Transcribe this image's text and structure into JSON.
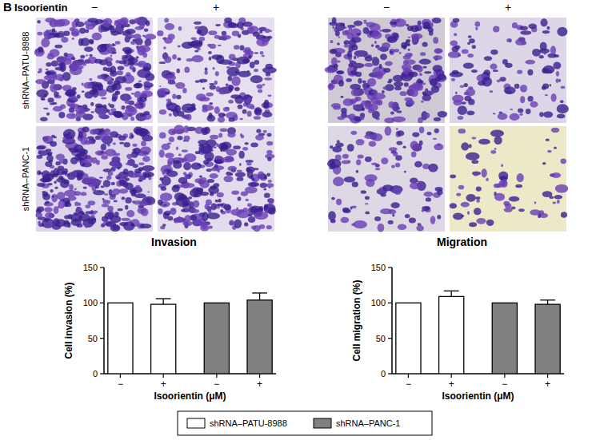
{
  "panel": {
    "label": "B",
    "treatment": "Isoorientin",
    "columns": [
      "−",
      "+",
      "−",
      "+"
    ],
    "rows": [
      "shRNA–PATU-8988",
      "shRNA–PANC-1"
    ]
  },
  "chart_data": [
    {
      "type": "bar",
      "title": "Invasion",
      "x_label": "Isoorientin (μM)",
      "y_label": "Cell invasion (%)",
      "categories": [
        "−",
        "+",
        "−",
        "+"
      ],
      "series": [
        {
          "name": "shRNA–PATU-8988",
          "color": "#ffffff",
          "values": [
            100,
            98,
            null,
            null
          ],
          "errors": [
            null,
            8,
            null,
            null
          ]
        },
        {
          "name": "shRNA–PANC-1",
          "color": "#808080",
          "values": [
            null,
            null,
            100,
            104
          ],
          "errors": [
            null,
            null,
            null,
            10
          ]
        }
      ],
      "ylim": [
        0,
        150
      ],
      "yticks": [
        0,
        50,
        100,
        150
      ],
      "legend": "bottom"
    },
    {
      "type": "bar",
      "title": "Migration",
      "x_label": "Isoorientin (μM)",
      "y_label": "Cell migration (%)",
      "categories": [
        "−",
        "+",
        "−",
        "+"
      ],
      "series": [
        {
          "color": "#ffffff",
          "values": [
            100,
            109,
            null,
            null
          ],
          "errors": [
            null,
            8,
            null,
            null
          ]
        },
        {
          "color": "#808080",
          "values": [
            null,
            null,
            100,
            98
          ],
          "errors": [
            null,
            null,
            null,
            6
          ]
        }
      ],
      "ylim": [
        0,
        150
      ],
      "yticks": [
        0,
        50,
        100,
        150
      ]
    }
  ]
}
